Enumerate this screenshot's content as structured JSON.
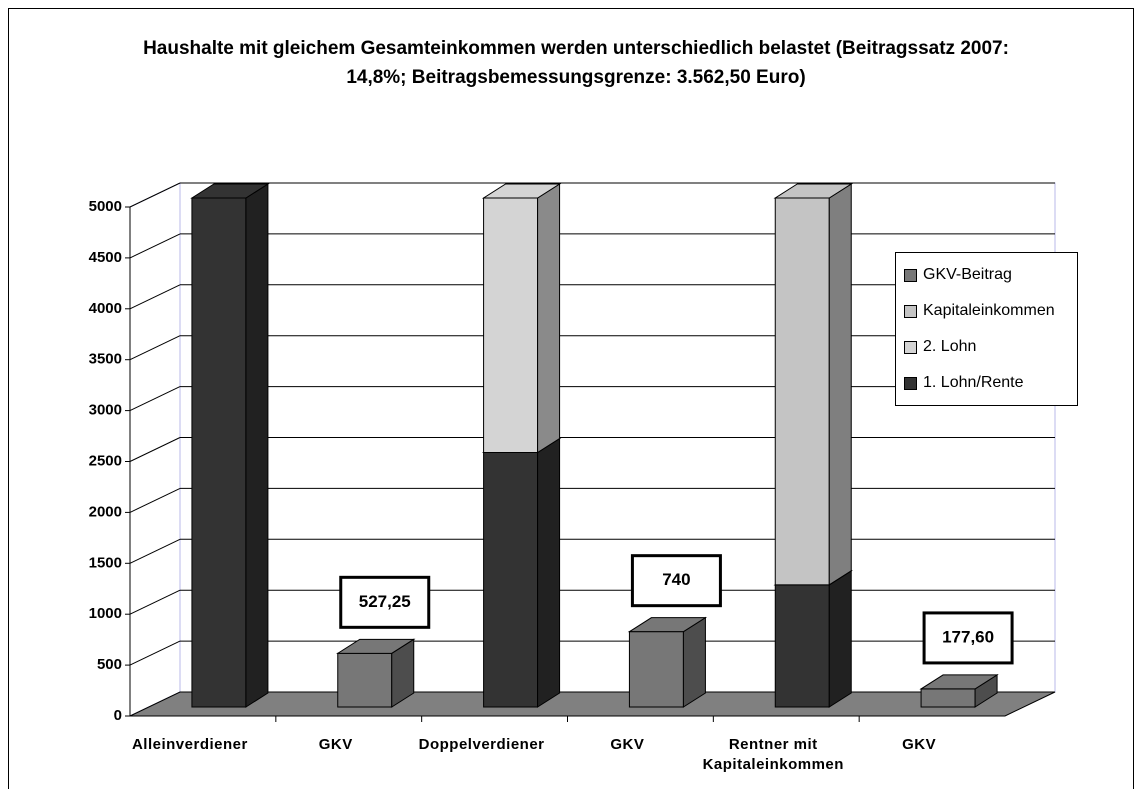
{
  "chart_data": {
    "type": "bar3d_stacked",
    "title": "Haushalte mit gleichem Gesamteinkommen werden unterschiedlich belastet (Beitragssatz 2007: 14,8%; Beitragsbemessungsgrenze: 3.562,50 Euro)",
    "categories": [
      "Alleinverdiener",
      "GKV",
      "Doppelverdiener",
      "GKV",
      "Rentner mit Kapitaleinkommen",
      "GKV"
    ],
    "series": [
      {
        "name": "1. Lohn/Rente",
        "color": "#333333",
        "values": [
          5000,
          null,
          2500,
          null,
          1200,
          null
        ]
      },
      {
        "name": "2. Lohn",
        "color": "#d4d4d4",
        "values": [
          null,
          null,
          2500,
          null,
          null,
          null
        ]
      },
      {
        "name": "Kapitaleinkommen",
        "color": "#c4c4c4",
        "values": [
          null,
          null,
          null,
          null,
          3800,
          null
        ]
      },
      {
        "name": "GKV-Beitrag",
        "color": "#777777",
        "values": [
          null,
          527.25,
          null,
          740,
          null,
          177.6
        ],
        "value_labels": [
          null,
          "527,25",
          null,
          "740",
          null,
          "177,60"
        ]
      }
    ],
    "ylim": [
      0,
      5000
    ],
    "yticks": [
      0,
      500,
      1000,
      1500,
      2000,
      2500,
      3000,
      3500,
      4000,
      4500,
      5000
    ],
    "grid": true,
    "legend": "right"
  }
}
